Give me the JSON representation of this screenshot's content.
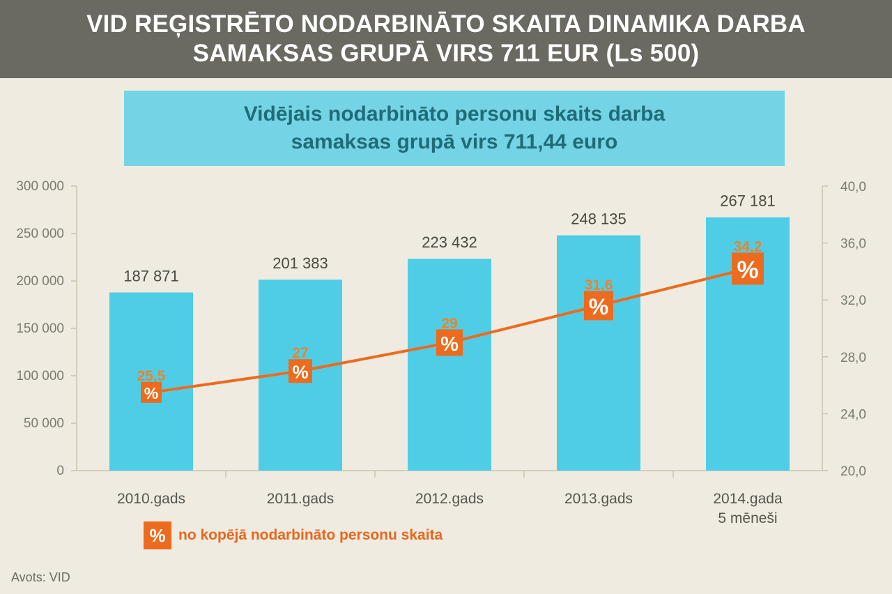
{
  "header": {
    "title_line1": "VID REĢISTRĒTO NODARBINĀTO SKAITA DINAMIKA DARBA",
    "title_line2": "SAMAKSAS GRUPĀ VIRS 711 EUR (Ls 500)"
  },
  "subtitle": {
    "line1": "Vidējais nodarbināto personu skaits darba",
    "line2": "samaksas grupā virs 711,44 euro"
  },
  "legend": {
    "icon": "%",
    "label": "no kopējā nodarbināto personu skaita"
  },
  "source": "Avots: VID",
  "colors": {
    "bar": "#50cde6",
    "line": "#ec6b1e",
    "marker": "#ec6b1e",
    "pct_label": "#e8842e",
    "axis": "#c9c3b1"
  },
  "chart_data": {
    "type": "bar",
    "categories": [
      [
        "2010.gads"
      ],
      [
        "2011.gads"
      ],
      [
        "2012.gads"
      ],
      [
        "2013.gads"
      ],
      [
        "2014.gada",
        "5 mēneši"
      ]
    ],
    "series": [
      {
        "type": "bar",
        "axis": "left",
        "values": [
          187871,
          201383,
          223432,
          248135,
          267181
        ],
        "labels": [
          "187 871",
          "201 383",
          "223 432",
          "248 135",
          "267 181"
        ]
      },
      {
        "type": "line",
        "axis": "right",
        "marker": "%",
        "values": [
          25.5,
          27,
          29,
          31.6,
          34.2
        ],
        "labels": [
          "25,5",
          "27",
          "29",
          "31,6",
          "34,2"
        ]
      }
    ],
    "y_left": {
      "lim": [
        0,
        300000
      ],
      "ticks": [
        "0",
        "50 000",
        "100 000",
        "150 000",
        "200 000",
        "250 000",
        "300 000"
      ]
    },
    "y_right": {
      "lim": [
        20,
        40
      ],
      "ticks": [
        "20,0",
        "24,0",
        "28,0",
        "32,0",
        "36,0",
        "40,0"
      ]
    },
    "grid": false,
    "legend_position": "bottom-left"
  }
}
